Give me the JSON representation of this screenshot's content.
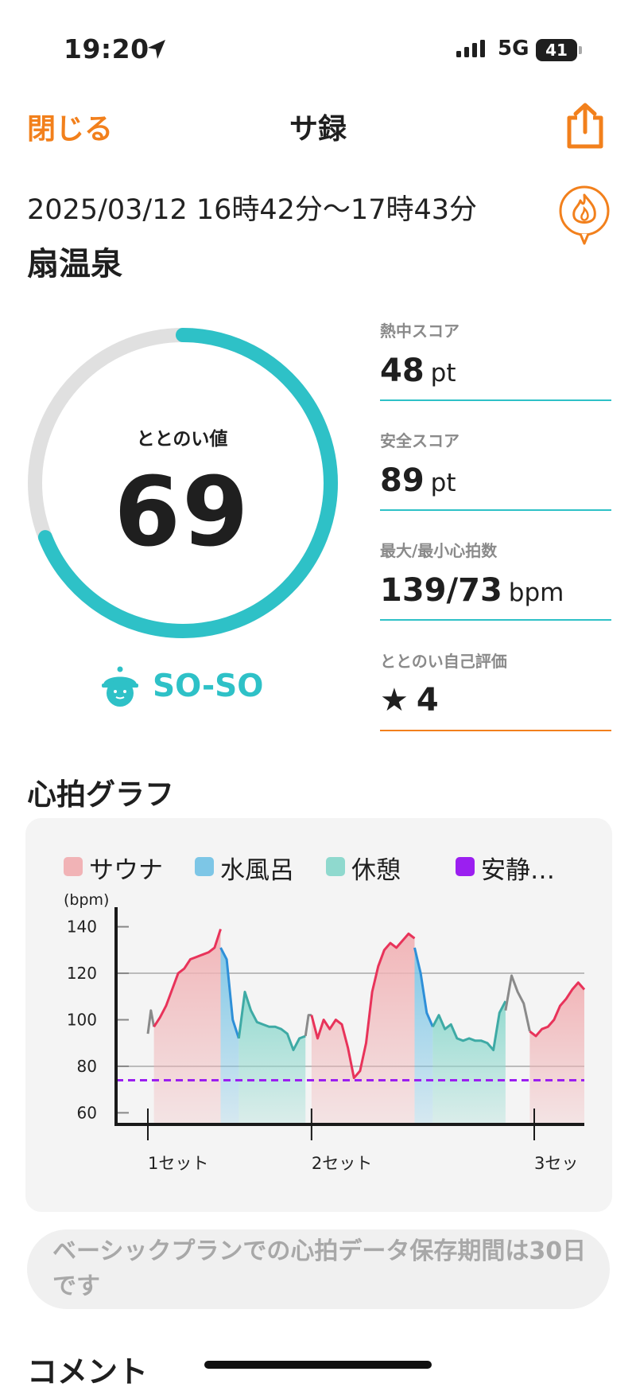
{
  "status_bar": {
    "time": "19:20",
    "network": "5G",
    "battery": "41"
  },
  "nav": {
    "close_label": "閉じる",
    "title": "サ録"
  },
  "session": {
    "datetime": "2025/03/12 16時42分〜17時43分",
    "facility": "扇温泉"
  },
  "totonoi": {
    "label": "ととのい値",
    "value": "69",
    "value_num": 69,
    "max": 100,
    "mood": "SO-SO"
  },
  "stats": [
    {
      "label": "熱中スコア",
      "value": "48",
      "unit": "pt"
    },
    {
      "label": "安全スコア",
      "value": "89",
      "unit": "pt"
    },
    {
      "label": "最大/最小心拍数",
      "value": "139/73",
      "unit": "bpm"
    },
    {
      "label": "ととのい自己評価",
      "value": "4",
      "unit": ""
    }
  ],
  "colors": {
    "accent_orange": "#f2801c",
    "teal": "#2ec1c7",
    "sauna": "#e8335a",
    "water": "#2e8fd8",
    "rest": "#3eaaa5",
    "resting_line": "#9b1ff0"
  },
  "hr_section": {
    "title": "心拍グラフ",
    "note": "ベーシックプランでの心拍データ保存期間は30日です"
  },
  "comment_title": "コメント",
  "chart_data": {
    "type": "line",
    "ylabel": "(bpm)",
    "ylim": [
      55,
      145
    ],
    "y_ticks": [
      "140",
      "120",
      "100",
      "80",
      "60"
    ],
    "x_ticks": [
      "1セット",
      "2セット",
      "3セッ"
    ],
    "legend": [
      {
        "name": "サウナ",
        "color": "#f1b3b6"
      },
      {
        "name": "水風呂",
        "color": "#7dc6e6"
      },
      {
        "name": "休憩",
        "color": "#8fd9ce"
      },
      {
        "name": "安静…",
        "color": "#9b1ff0"
      }
    ],
    "resting_hr": 74,
    "x_range": [
      0,
      60
    ],
    "segments": [
      {
        "phase": "gap",
        "points": [
          [
            0,
            94
          ],
          [
            0.5,
            104
          ],
          [
            1,
            97
          ]
        ]
      },
      {
        "phase": "sauna",
        "points": [
          [
            1,
            97
          ],
          [
            2,
            101
          ],
          [
            3,
            106
          ],
          [
            4,
            113
          ],
          [
            5,
            120
          ],
          [
            6,
            122
          ],
          [
            7,
            126
          ],
          [
            8,
            127
          ],
          [
            9,
            128
          ],
          [
            10,
            129
          ],
          [
            11,
            131
          ],
          [
            12,
            139
          ]
        ]
      },
      {
        "phase": "water",
        "points": [
          [
            12,
            131
          ],
          [
            13,
            126
          ],
          [
            14,
            100
          ],
          [
            15,
            92
          ]
        ]
      },
      {
        "phase": "rest",
        "points": [
          [
            15,
            92
          ],
          [
            16,
            112
          ],
          [
            17,
            104
          ],
          [
            18,
            99
          ],
          [
            19,
            98
          ],
          [
            20,
            97
          ],
          [
            21,
            97
          ],
          [
            22,
            96
          ],
          [
            23,
            94
          ],
          [
            24,
            87
          ],
          [
            25,
            92
          ],
          [
            26,
            93
          ]
        ]
      },
      {
        "phase": "gap",
        "points": [
          [
            26,
            93
          ],
          [
            26.5,
            102
          ],
          [
            27,
            102
          ]
        ]
      },
      {
        "phase": "sauna",
        "points": [
          [
            27,
            102
          ],
          [
            28,
            92
          ],
          [
            29,
            100
          ],
          [
            30,
            96
          ],
          [
            31,
            100
          ],
          [
            32,
            98
          ],
          [
            33,
            88
          ],
          [
            34,
            75
          ],
          [
            35,
            78
          ],
          [
            36,
            90
          ],
          [
            37,
            112
          ],
          [
            38,
            123
          ],
          [
            39,
            130
          ],
          [
            40,
            133
          ],
          [
            41,
            131
          ],
          [
            42,
            134
          ],
          [
            43,
            137
          ],
          [
            44,
            135
          ]
        ]
      },
      {
        "phase": "water",
        "points": [
          [
            44,
            131
          ],
          [
            45,
            120
          ],
          [
            46,
            103
          ],
          [
            47,
            97
          ]
        ]
      },
      {
        "phase": "rest",
        "points": [
          [
            47,
            97
          ],
          [
            48,
            102
          ],
          [
            49,
            96
          ],
          [
            50,
            98
          ],
          [
            51,
            92
          ],
          [
            52,
            91
          ],
          [
            53,
            92
          ],
          [
            54,
            91
          ],
          [
            55,
            91
          ],
          [
            56,
            90
          ],
          [
            57,
            87
          ],
          [
            58,
            103
          ],
          [
            59,
            108
          ]
        ]
      },
      {
        "phase": "gap",
        "points": [
          [
            59,
            104
          ],
          [
            60,
            119
          ],
          [
            61,
            112
          ],
          [
            62,
            107
          ],
          [
            63,
            95
          ]
        ]
      },
      {
        "phase": "sauna",
        "points": [
          [
            63,
            95
          ],
          [
            64,
            93
          ],
          [
            65,
            96
          ],
          [
            66,
            97
          ],
          [
            67,
            100
          ],
          [
            68,
            106
          ],
          [
            69,
            109
          ],
          [
            70,
            113
          ],
          [
            71,
            116
          ],
          [
            72,
            113
          ]
        ]
      }
    ]
  }
}
